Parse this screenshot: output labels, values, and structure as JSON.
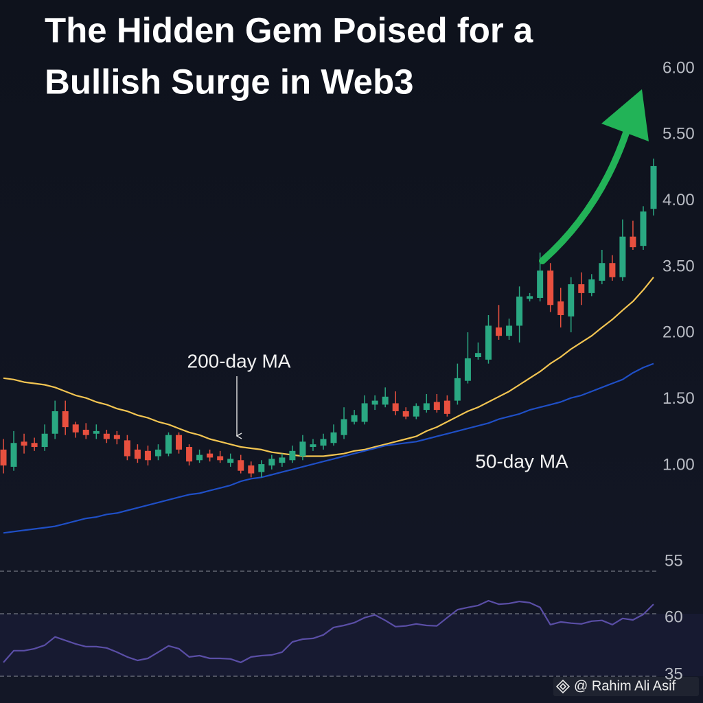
{
  "chart_data": [
    {
      "type": "candlestick",
      "title": [
        "The Hidden Gem Poised for a",
        "Bullish Surge in Web3"
      ],
      "open": [
        1.12,
        0.99,
        1.18,
        1.17,
        1.14,
        1.24,
        1.41,
        1.31,
        1.27,
        1.24,
        1.24,
        1.23,
        1.19,
        1.12,
        1.11,
        1.07,
        1.09,
        1.23,
        1.14,
        1.04,
        1.09,
        1.07,
        1.02,
        1.04,
        1.0,
        0.95,
        1.0,
        1.02,
        1.04,
        1.07,
        1.14,
        1.15,
        1.17,
        1.23,
        1.33,
        1.33,
        1.46,
        1.46,
        1.47,
        1.41,
        1.37,
        1.42,
        1.48,
        1.49,
        1.49,
        1.64,
        1.82,
        1.8,
        2.13,
        1.98,
        2.17,
        2.78,
        2.8,
        3.42,
        2.72,
        2.38,
        3.11,
        2.91,
        3.19,
        3.53,
        3.27,
        3.73,
        3.66,
        3.94
      ],
      "high": [
        1.2,
        1.26,
        1.24,
        1.21,
        1.31,
        1.49,
        1.49,
        1.33,
        1.32,
        1.31,
        1.27,
        1.26,
        1.23,
        1.16,
        1.15,
        1.16,
        1.25,
        1.25,
        1.16,
        1.12,
        1.12,
        1.11,
        1.09,
        1.08,
        1.03,
        1.04,
        1.08,
        1.09,
        1.15,
        1.23,
        1.2,
        1.24,
        1.31,
        1.44,
        1.42,
        1.53,
        1.53,
        1.59,
        1.56,
        1.44,
        1.47,
        1.54,
        1.54,
        1.53,
        1.77,
        2.02,
        1.93,
        2.41,
        2.64,
        2.33,
        3.06,
        2.91,
        3.61,
        3.53,
        3.03,
        3.27,
        3.38,
        3.34,
        3.63,
        3.59,
        3.86,
        3.85,
        3.96,
        4.96
      ],
      "low": [
        0.94,
        0.96,
        1.09,
        1.11,
        1.11,
        1.2,
        1.23,
        1.21,
        1.2,
        1.2,
        1.17,
        1.16,
        1.04,
        1.02,
        1.0,
        1.04,
        1.07,
        1.09,
        1.0,
        1.02,
        1.03,
        1.02,
        0.99,
        0.94,
        0.91,
        0.91,
        0.97,
        0.99,
        1.02,
        1.04,
        1.11,
        1.12,
        1.15,
        1.2,
        1.31,
        1.31,
        1.42,
        1.44,
        1.38,
        1.35,
        1.35,
        1.4,
        1.4,
        1.37,
        1.46,
        1.62,
        1.8,
        1.77,
        1.95,
        1.95,
        1.93,
        2.72,
        2.72,
        2.48,
        2.13,
        2.02,
        2.64,
        2.84,
        3.11,
        3.19,
        3.19,
        3.63,
        3.63,
        3.89
      ],
      "close": [
        1.0,
        1.17,
        1.15,
        1.14,
        1.24,
        1.41,
        1.29,
        1.25,
        1.23,
        1.26,
        1.2,
        1.2,
        1.07,
        1.05,
        1.04,
        1.12,
        1.23,
        1.12,
        1.03,
        1.08,
        1.06,
        1.04,
        1.05,
        0.96,
        0.94,
        1.01,
        1.05,
        1.06,
        1.11,
        1.18,
        1.16,
        1.2,
        1.25,
        1.35,
        1.38,
        1.47,
        1.49,
        1.52,
        1.41,
        1.37,
        1.45,
        1.47,
        1.42,
        1.39,
        1.66,
        1.81,
        1.85,
        2.17,
        1.98,
        2.17,
        2.83,
        2.84,
        3.42,
        2.64,
        2.41,
        3.11,
        2.91,
        3.22,
        3.53,
        3.27,
        3.73,
        3.65,
        3.92,
        4.79
      ],
      "up_color": "#2aa882",
      "down_color": "#e8503f",
      "series": [
        {
          "name": "200-day MA",
          "color": "#f3c552",
          "values": [
            1.66,
            1.65,
            1.63,
            1.62,
            1.61,
            1.59,
            1.56,
            1.53,
            1.51,
            1.48,
            1.46,
            1.43,
            1.41,
            1.38,
            1.36,
            1.33,
            1.31,
            1.28,
            1.25,
            1.23,
            1.2,
            1.18,
            1.16,
            1.14,
            1.13,
            1.12,
            1.1,
            1.09,
            1.08,
            1.07,
            1.07,
            1.07,
            1.08,
            1.09,
            1.11,
            1.12,
            1.14,
            1.16,
            1.18,
            1.2,
            1.22,
            1.26,
            1.29,
            1.33,
            1.37,
            1.41,
            1.44,
            1.48,
            1.52,
            1.56,
            1.61,
            1.66,
            1.71,
            1.77,
            1.82,
            1.88,
            1.93,
            1.98,
            2.13,
            2.31,
            2.52,
            2.72,
            2.98,
            3.27
          ]
        },
        {
          "name": "50-day MA",
          "color": "#1f4fc6",
          "values": [
            0.49,
            0.5,
            0.51,
            0.52,
            0.53,
            0.54,
            0.56,
            0.58,
            0.6,
            0.61,
            0.63,
            0.64,
            0.66,
            0.68,
            0.7,
            0.72,
            0.74,
            0.76,
            0.78,
            0.79,
            0.81,
            0.83,
            0.85,
            0.88,
            0.9,
            0.91,
            0.93,
            0.95,
            0.97,
            0.99,
            1.01,
            1.03,
            1.05,
            1.07,
            1.09,
            1.11,
            1.13,
            1.15,
            1.16,
            1.17,
            1.18,
            1.2,
            1.22,
            1.24,
            1.26,
            1.28,
            1.3,
            1.32,
            1.35,
            1.37,
            1.39,
            1.42,
            1.44,
            1.46,
            1.48,
            1.51,
            1.53,
            1.56,
            1.59,
            1.62,
            1.65,
            1.7,
            1.74,
            1.77
          ]
        }
      ],
      "ylim": [
        0.4,
        6.0
      ],
      "yticks": [
        {
          "value": 6,
          "label": "6.00"
        },
        {
          "value": 5.5,
          "label": "5.50"
        },
        {
          "value": 4,
          "label": "4.00"
        },
        {
          "value": 3.5,
          "label": "3.50"
        },
        {
          "value": 2,
          "label": "2.00"
        },
        {
          "value": 1.5,
          "label": "1.50"
        },
        {
          "value": 1,
          "label": "1.00"
        }
      ]
    },
    {
      "type": "line",
      "series": [
        {
          "color": "#5a4ea6",
          "values": [
            40.5,
            45.2,
            45.2,
            46.0,
            47.4,
            50.7,
            49.3,
            47.9,
            46.8,
            46.8,
            46.3,
            44.6,
            42.7,
            41.3,
            42.1,
            44.6,
            47.1,
            46.0,
            42.7,
            43.2,
            42.1,
            42.1,
            41.9,
            40.5,
            42.7,
            43.2,
            43.5,
            44.6,
            48.7,
            49.8,
            50.1,
            51.5,
            54.5,
            55.3,
            56.4,
            58.4,
            59.5,
            57.3,
            54.8,
            55.1,
            55.9,
            55.3,
            55.1,
            58.4,
            61.6,
            62.5,
            63.3,
            65.2,
            63.8,
            64.1,
            64.9,
            64.4,
            62.5,
            55.6,
            56.7,
            56.2,
            55.9,
            57.0,
            57.3,
            55.6,
            58.1,
            57.5,
            59.7,
            63.8
          ]
        }
      ],
      "ylim": [
        28.1,
        85.8
      ],
      "yticks": [
        55,
        60,
        35
      ]
    }
  ],
  "watermark": "@ Rahim Ali Asif"
}
